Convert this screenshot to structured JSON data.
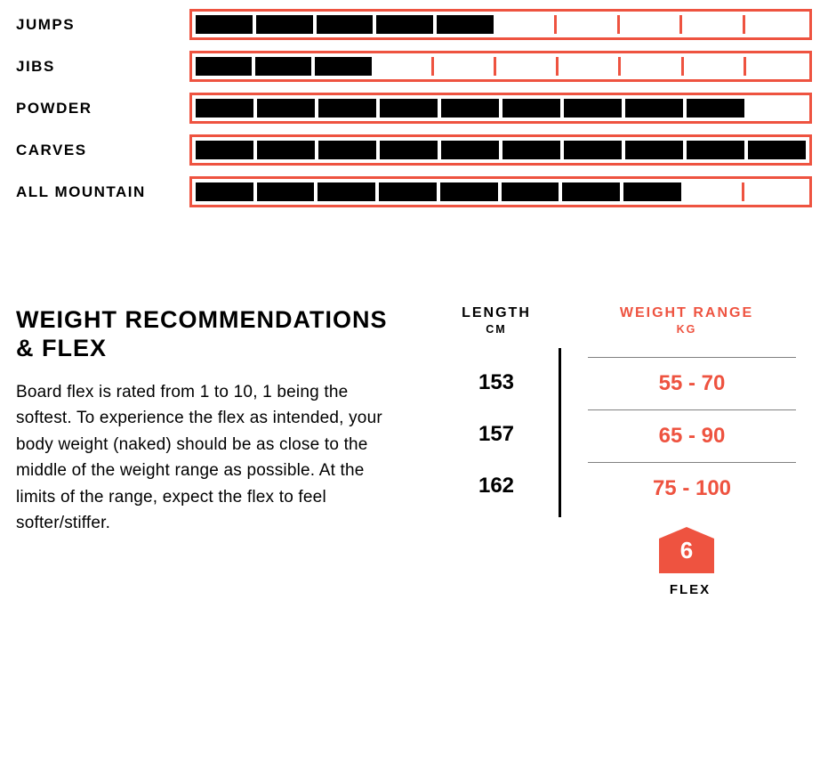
{
  "ratings": {
    "max_cells": 10,
    "items": [
      {
        "label": "JUMPS",
        "value": 5
      },
      {
        "label": "JIBS",
        "value": 3
      },
      {
        "label": "POWDER",
        "value": 9
      },
      {
        "label": "CARVES",
        "value": 10
      },
      {
        "label": "ALL MOUNTAIN",
        "value": 8
      }
    ],
    "border_color": "#ee5340",
    "fill_color": "#000000",
    "empty_color": "#ffffff"
  },
  "weight_section": {
    "heading": "WEIGHT RECOMMENDATIONS & FLEX",
    "body": "Board flex is rated from 1 to 10, 1 being the softest. To experience the flex as intended, your body weight (naked) should be as close to the middle of the weight range as possible. At the limits of the range, expect the flex to feel softer/stiffer."
  },
  "table": {
    "length_header": "LENGTH",
    "length_unit": "CM",
    "range_header": "WEIGHT RANGE",
    "range_unit": "KG",
    "rows": [
      {
        "length": "153",
        "range": "55 - 70"
      },
      {
        "length": "157",
        "range": "65 - 90"
      },
      {
        "length": "162",
        "range": "75 - 100"
      }
    ]
  },
  "flex": {
    "value": "6",
    "label": "FLEX",
    "shape_color": "#ee5340"
  }
}
